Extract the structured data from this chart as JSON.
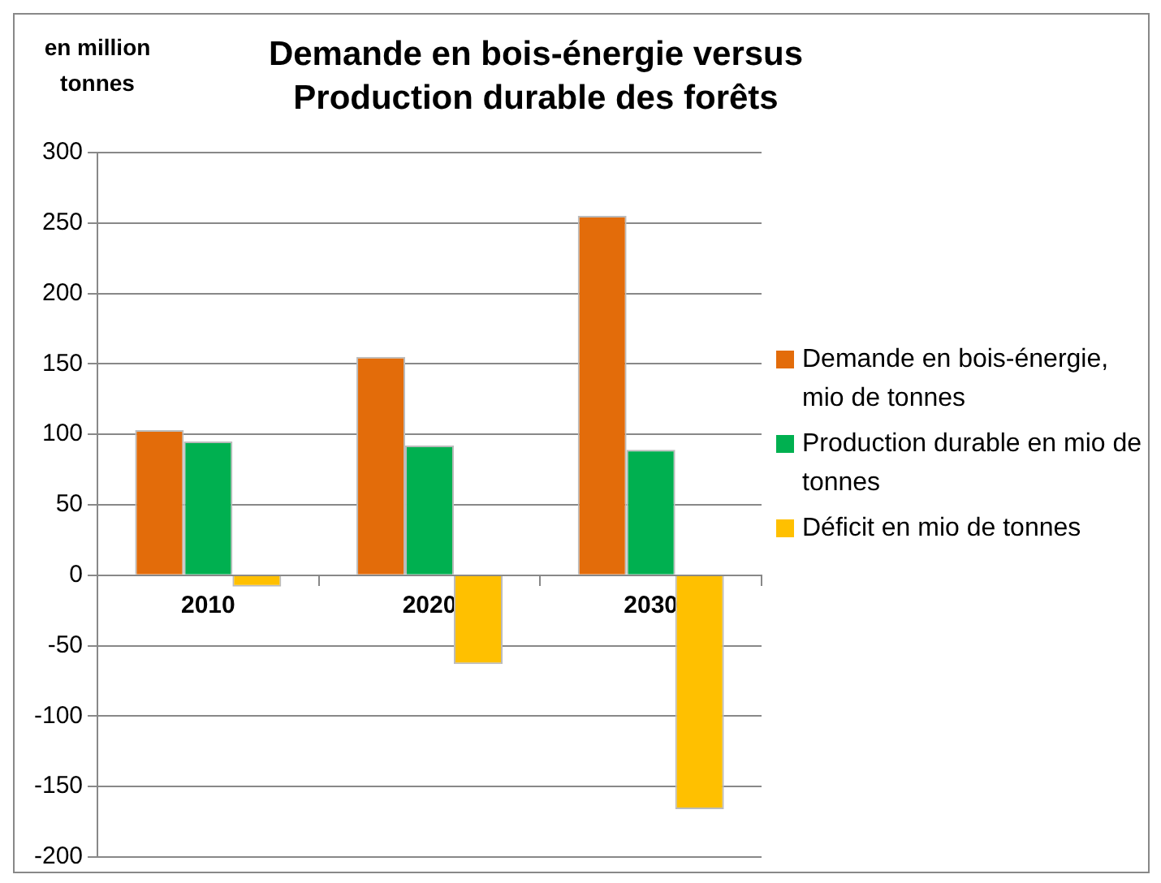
{
  "chart_data": {
    "type": "bar",
    "title": "Demande en bois-énergie versus Production durable des forêts",
    "ylabel": "en million tonnes",
    "categories": [
      "2010",
      "2020",
      "2030"
    ],
    "series": [
      {
        "name": "Demande en bois-énergie, mio de tonnes",
        "color": "#e36c0a",
        "values": [
          103,
          155,
          255
        ]
      },
      {
        "name": "Production durable en mio de tonnes",
        "color": "#00b050",
        "values": [
          95,
          92,
          89
        ]
      },
      {
        "name": "Déficit en mio de tonnes",
        "color": "#ffc000",
        "values": [
          -8,
          -63,
          -166
        ]
      }
    ],
    "ylim": [
      -200,
      300
    ],
    "yticks": [
      -200,
      -150,
      -100,
      -50,
      0,
      50,
      100,
      150,
      200,
      250,
      300
    ],
    "grid": "y",
    "legend": "right"
  }
}
